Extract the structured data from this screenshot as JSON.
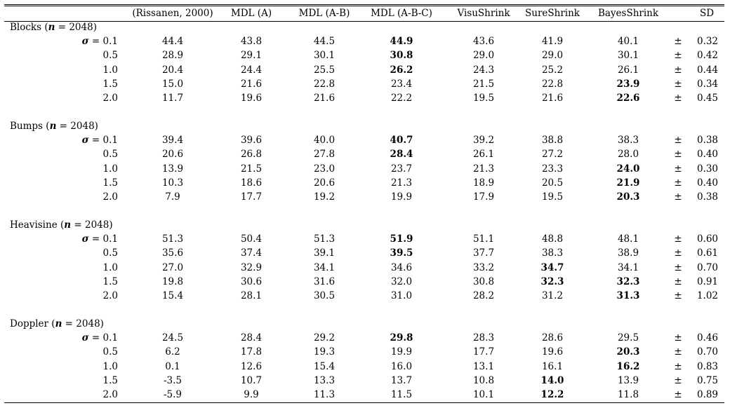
{
  "headers": [
    "(Rissanen, 2000)",
    "MDL (A)",
    "MDL (A-B)",
    "MDL (A-B-C)",
    "VisuShrink",
    "SureShrink",
    "BayesShrink",
    "SD"
  ],
  "groups": [
    {
      "name": "Blocks",
      "n": "2048",
      "rows": [
        {
          "sigma": "0.1",
          "values": [
            "44.4",
            "43.8",
            "44.5",
            "44.9",
            "43.6",
            "41.9",
            "40.1"
          ],
          "bold": [
            3
          ],
          "sd": "0.32"
        },
        {
          "sigma": "0.5",
          "values": [
            "28.9",
            "29.1",
            "30.1",
            "30.8",
            "29.0",
            "29.0",
            "30.1"
          ],
          "bold": [
            3
          ],
          "sd": "0.42"
        },
        {
          "sigma": "1.0",
          "values": [
            "20.4",
            "24.4",
            "25.5",
            "26.2",
            "24.3",
            "25.2",
            "26.1"
          ],
          "bold": [
            3
          ],
          "sd": "0.44"
        },
        {
          "sigma": "1.5",
          "values": [
            "15.0",
            "21.6",
            "22.8",
            "23.4",
            "21.5",
            "22.8",
            "23.9"
          ],
          "bold": [
            6
          ],
          "sd": "0.34"
        },
        {
          "sigma": "2.0",
          "values": [
            "11.7",
            "19.6",
            "21.6",
            "22.2",
            "19.5",
            "21.6",
            "22.6"
          ],
          "bold": [
            6
          ],
          "sd": "0.45"
        }
      ]
    },
    {
      "name": "Bumps",
      "n": "2048",
      "rows": [
        {
          "sigma": "0.1",
          "values": [
            "39.4",
            "39.6",
            "40.0",
            "40.7",
            "39.2",
            "38.8",
            "38.3"
          ],
          "bold": [
            3
          ],
          "sd": "0.38"
        },
        {
          "sigma": "0.5",
          "values": [
            "20.6",
            "26.8",
            "27.8",
            "28.4",
            "26.1",
            "27.2",
            "28.0"
          ],
          "bold": [
            3
          ],
          "sd": "0.40"
        },
        {
          "sigma": "1.0",
          "values": [
            "13.9",
            "21.5",
            "23.0",
            "23.7",
            "21.3",
            "23.3",
            "24.0"
          ],
          "bold": [
            6
          ],
          "sd": "0.30"
        },
        {
          "sigma": "1.5",
          "values": [
            "10.3",
            "18.6",
            "20.6",
            "21.3",
            "18.9",
            "20.5",
            "21.9"
          ],
          "bold": [
            6
          ],
          "sd": "0.40"
        },
        {
          "sigma": "2.0",
          "values": [
            "7.9",
            "17.7",
            "19.2",
            "19.9",
            "17.9",
            "19.5",
            "20.3"
          ],
          "bold": [
            6
          ],
          "sd": "0.38"
        }
      ]
    },
    {
      "name": "Heavisine",
      "n": "2048",
      "rows": [
        {
          "sigma": "0.1",
          "values": [
            "51.3",
            "50.4",
            "51.3",
            "51.9",
            "51.1",
            "48.8",
            "48.1"
          ],
          "bold": [
            3
          ],
          "sd": "0.60"
        },
        {
          "sigma": "0.5",
          "values": [
            "35.6",
            "37.4",
            "39.1",
            "39.5",
            "37.7",
            "38.3",
            "38.9"
          ],
          "bold": [
            3
          ],
          "sd": "0.61"
        },
        {
          "sigma": "1.0",
          "values": [
            "27.0",
            "32.9",
            "34.1",
            "34.6",
            "33.2",
            "34.7",
            "34.1"
          ],
          "bold": [
            5
          ],
          "sd": "0.70"
        },
        {
          "sigma": "1.5",
          "values": [
            "19.8",
            "30.6",
            "31.6",
            "32.0",
            "30.8",
            "32.3",
            "32.3"
          ],
          "bold": [
            5,
            6
          ],
          "sd": "0.91"
        },
        {
          "sigma": "2.0",
          "values": [
            "15.4",
            "28.1",
            "30.5",
            "31.0",
            "28.2",
            "31.2",
            "31.3"
          ],
          "bold": [
            6
          ],
          "sd": "1.02"
        }
      ]
    },
    {
      "name": "Doppler",
      "n": "2048",
      "rows": [
        {
          "sigma": "0.1",
          "values": [
            "24.5",
            "28.4",
            "29.2",
            "29.8",
            "28.3",
            "28.6",
            "29.5"
          ],
          "bold": [
            3
          ],
          "sd": "0.46"
        },
        {
          "sigma": "0.5",
          "values": [
            "6.2",
            "17.8",
            "19.3",
            "19.9",
            "17.7",
            "19.6",
            "20.3"
          ],
          "bold": [
            6
          ],
          "sd": "0.70"
        },
        {
          "sigma": "1.0",
          "values": [
            "0.1",
            "12.6",
            "15.4",
            "16.0",
            "13.1",
            "16.1",
            "16.2"
          ],
          "bold": [
            6
          ],
          "sd": "0.83"
        },
        {
          "sigma": "1.5",
          "values": [
            "-3.5",
            "10.7",
            "13.3",
            "13.7",
            "10.8",
            "14.0",
            "13.9"
          ],
          "bold": [
            5
          ],
          "sd": "0.75"
        },
        {
          "sigma": "2.0",
          "values": [
            "-5.9",
            "9.9",
            "11.3",
            "11.5",
            "10.1",
            "12.2",
            "11.8"
          ],
          "bold": [
            5
          ],
          "sd": "0.89"
        }
      ]
    }
  ],
  "pm_symbol": "±",
  "sigma_symbol": "σ",
  "n_symbol": "n"
}
